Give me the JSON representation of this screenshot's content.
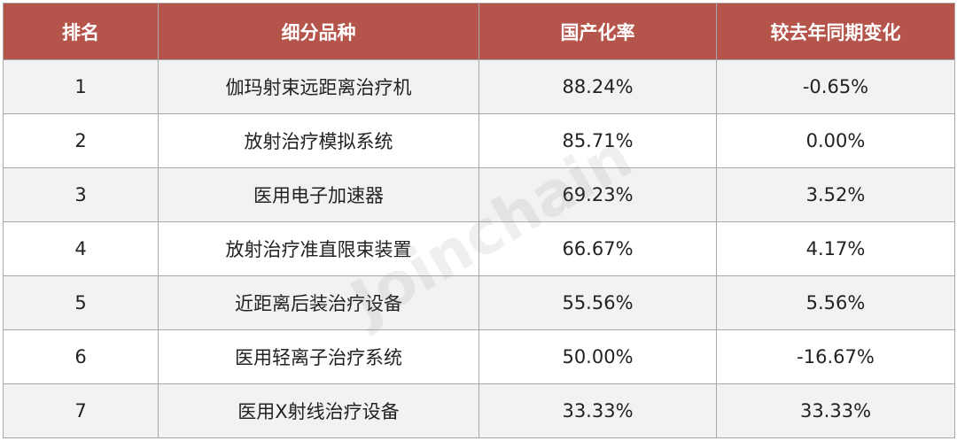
{
  "table": {
    "headers": [
      "排名",
      "细分品种",
      "国产化率",
      "较去年同期变化"
    ],
    "rows": [
      [
        "1",
        "伽玛射束远距离治疗机",
        "88.24%",
        "-0.65%"
      ],
      [
        "2",
        "放射治疗模拟系统",
        "85.71%",
        "0.00%"
      ],
      [
        "3",
        "医用电子加速器",
        "69.23%",
        "3.52%"
      ],
      [
        "4",
        "放射治疗准直限束装置",
        "66.67%",
        "4.17%"
      ],
      [
        "5",
        "近距离后装治疗设备",
        "55.56%",
        "5.56%"
      ],
      [
        "6",
        "医用轻离子治疗系统",
        "50.00%",
        "-16.67%"
      ],
      [
        "7",
        "医用X射线治疗设备",
        "33.33%",
        "33.33%"
      ]
    ]
  },
  "watermark": "Joinchain"
}
